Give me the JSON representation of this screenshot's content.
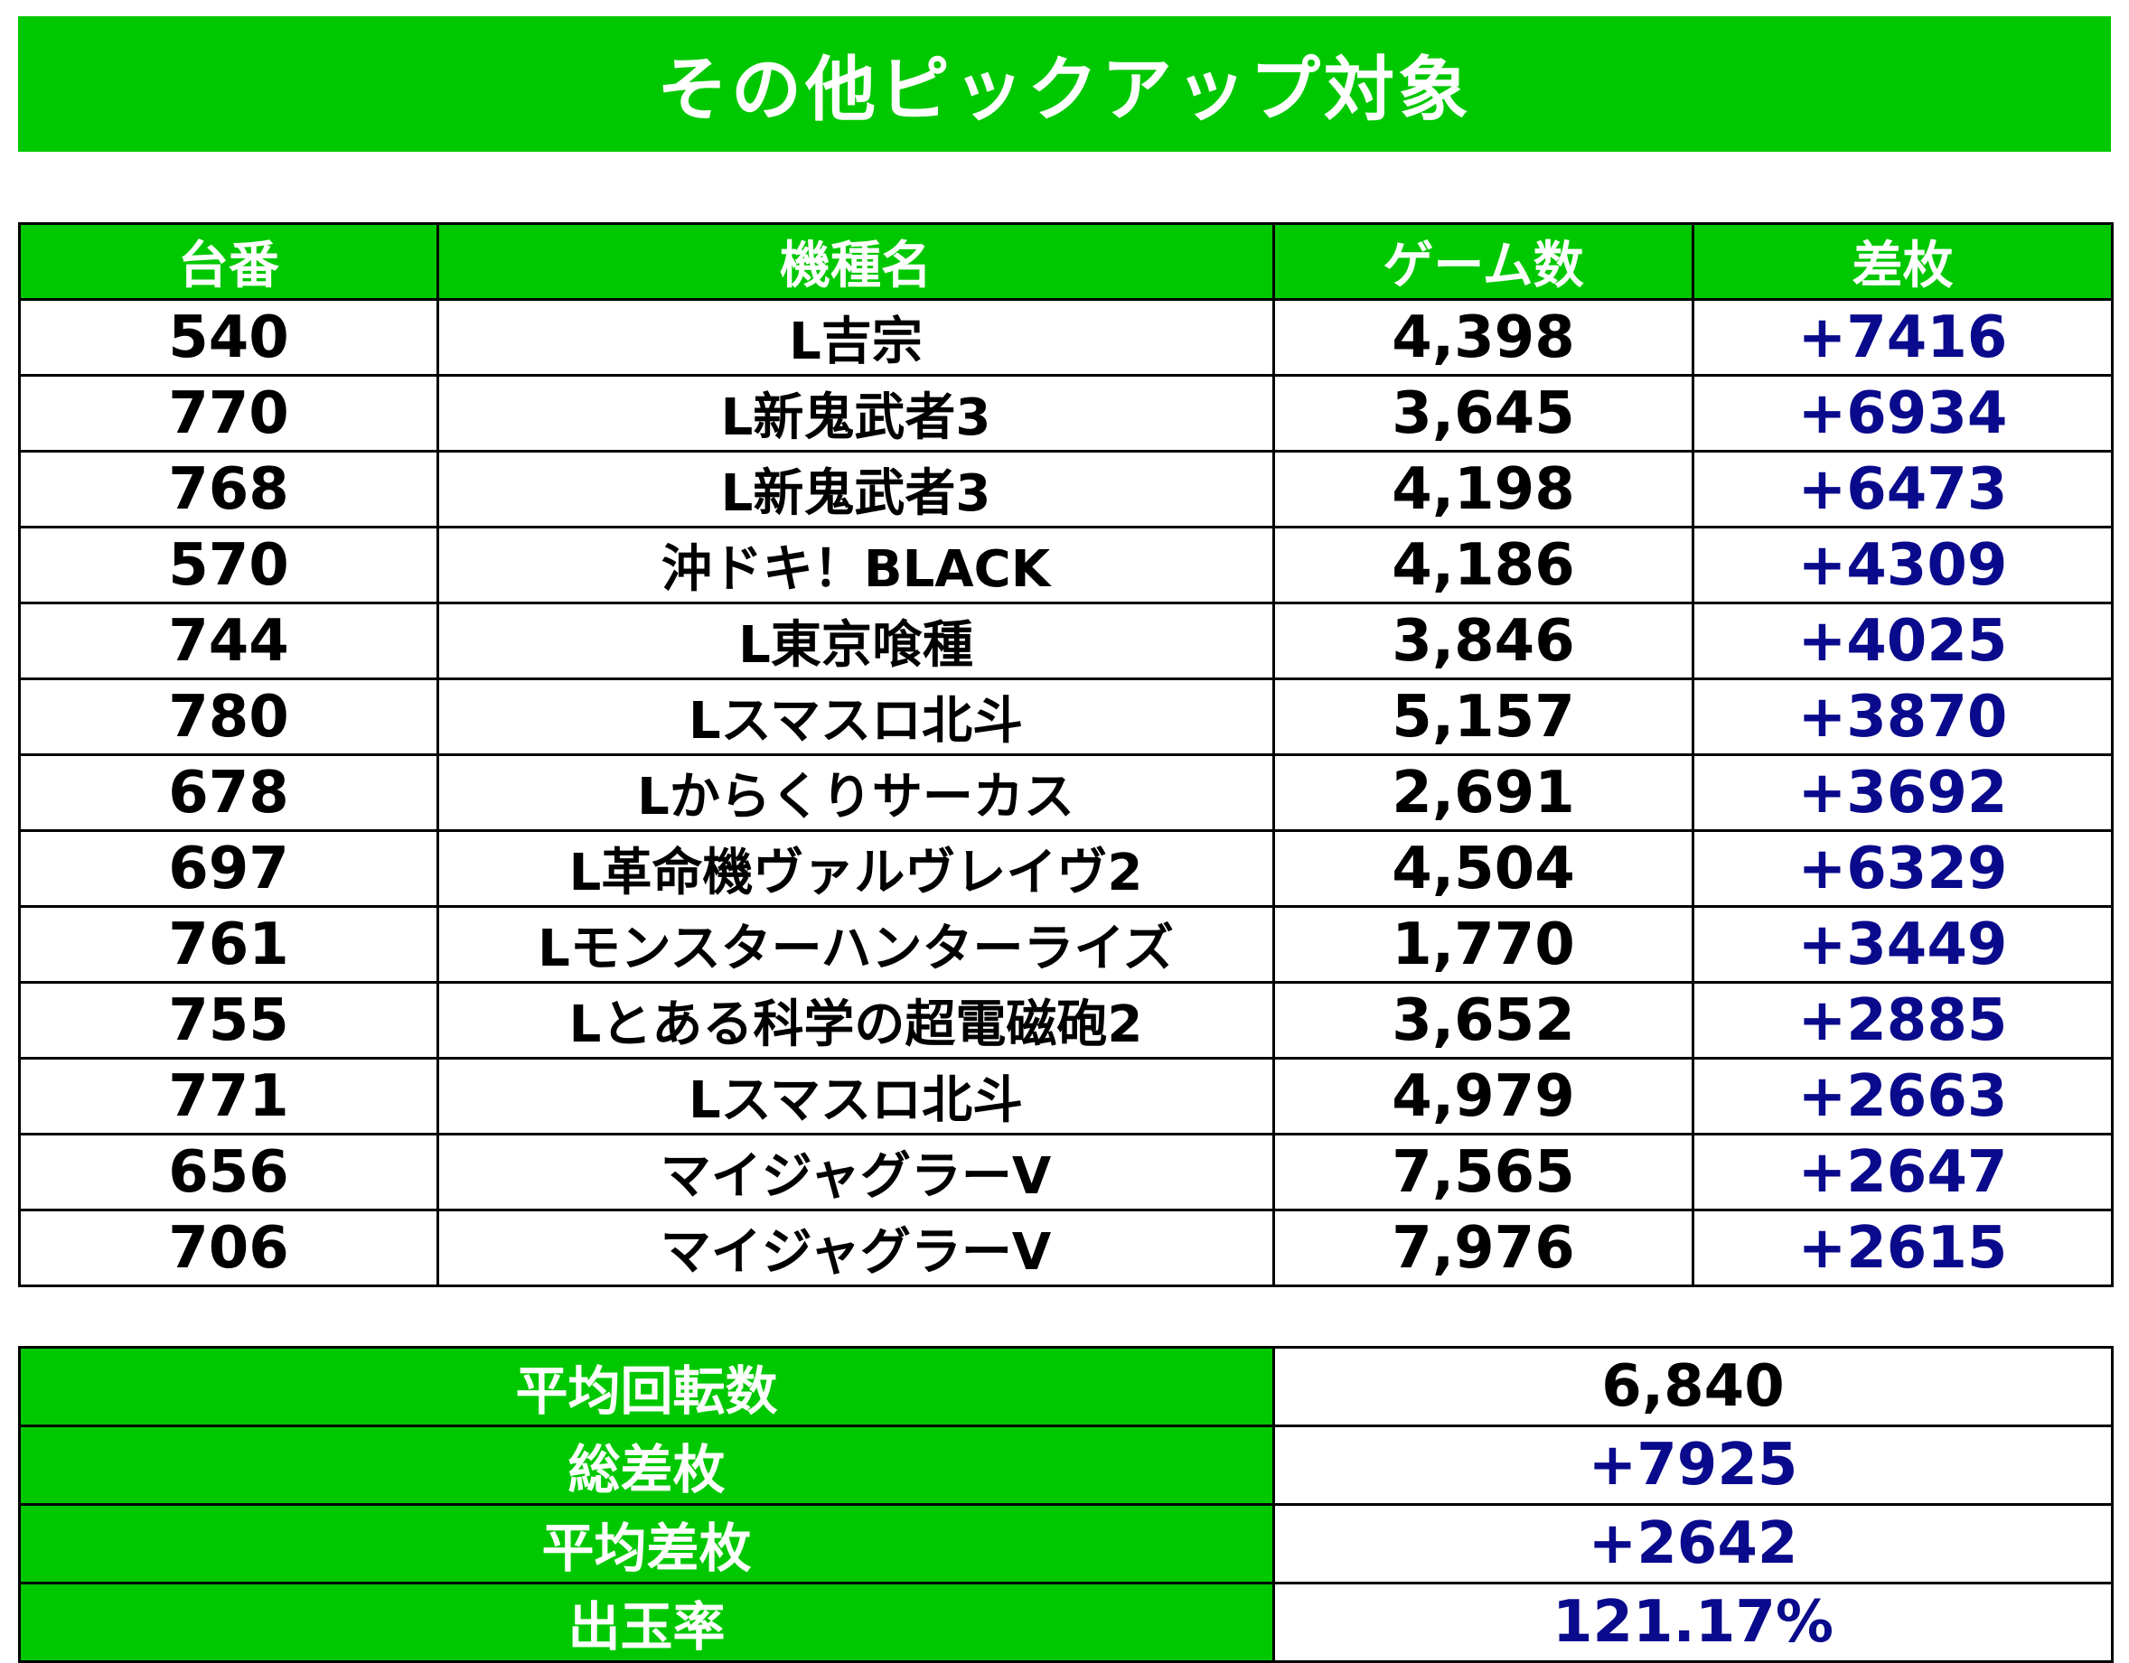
{
  "title": "その他ピックアップ対象",
  "colors": {
    "header_green": "#00c800",
    "positive_blue": "#0a0a8c",
    "text_black": "#000000"
  },
  "table": {
    "headers": [
      "台番",
      "機種名",
      "ゲーム数",
      "差枚"
    ],
    "rows": [
      {
        "unit": "540",
        "machine": "L吉宗",
        "games": "4,398",
        "diff": "+7416"
      },
      {
        "unit": "770",
        "machine": "L新鬼武者3",
        "games": "3,645",
        "diff": "+6934"
      },
      {
        "unit": "768",
        "machine": "L新鬼武者3",
        "games": "4,198",
        "diff": "+6473"
      },
      {
        "unit": "570",
        "machine": "沖ドキ！BLACK",
        "games": "4,186",
        "diff": "+4309"
      },
      {
        "unit": "744",
        "machine": "L東京喰種",
        "games": "3,846",
        "diff": "+4025"
      },
      {
        "unit": "780",
        "machine": "Lスマスロ北斗",
        "games": "5,157",
        "diff": "+3870"
      },
      {
        "unit": "678",
        "machine": "Lからくりサーカス",
        "games": "2,691",
        "diff": "+3692"
      },
      {
        "unit": "697",
        "machine": "L革命機ヴァルヴレイヴ2",
        "games": "4,504",
        "diff": "+6329"
      },
      {
        "unit": "761",
        "machine": "Lモンスターハンターライズ",
        "games": "1,770",
        "diff": "+3449"
      },
      {
        "unit": "755",
        "machine": "Lとある科学の超電磁砲2",
        "games": "3,652",
        "diff": "+2885"
      },
      {
        "unit": "771",
        "machine": "Lスマスロ北斗",
        "games": "4,979",
        "diff": "+2663"
      },
      {
        "unit": "656",
        "machine": "マイジャグラーV",
        "games": "7,565",
        "diff": "+2647"
      },
      {
        "unit": "706",
        "machine": "マイジャグラーV",
        "games": "7,976",
        "diff": "+2615"
      }
    ]
  },
  "summary": [
    {
      "label": "平均回転数",
      "value": "6,840"
    },
    {
      "label": "総差枚",
      "value": "+7925"
    },
    {
      "label": "平均差枚",
      "value": "+2642"
    },
    {
      "label": "出玉率",
      "value": "121.17%"
    }
  ]
}
